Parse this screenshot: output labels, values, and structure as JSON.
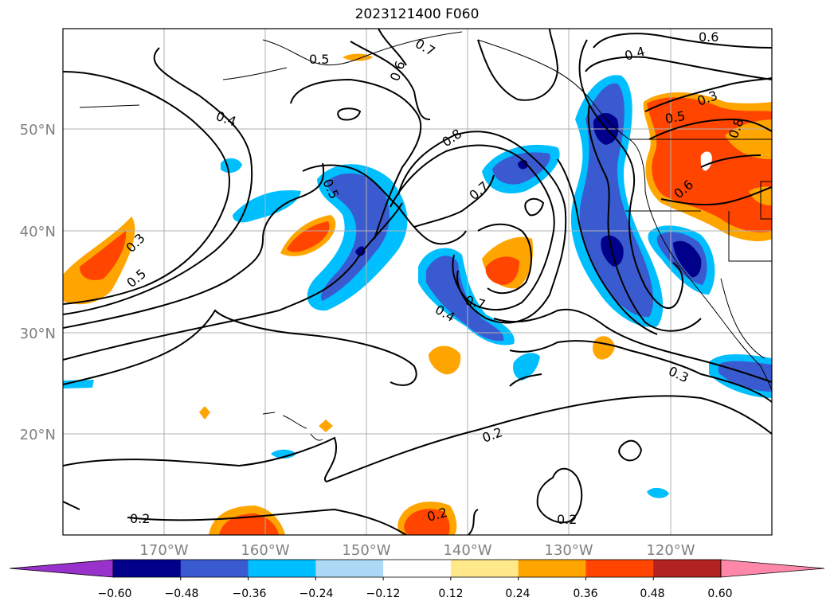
{
  "title": "2023121400 F060",
  "map": {
    "latitude_labels": [
      "50°N",
      "40°N",
      "30°N",
      "20°N"
    ],
    "longitude_labels": [
      "170°W",
      "160°W",
      "150°W",
      "140°W",
      "130°W",
      "120°W"
    ],
    "contour_labels": [
      "0.6",
      "0.7",
      "0.5",
      "0.6",
      "0.4",
      "0.8",
      "0.7",
      "0.5",
      "0.3",
      "0.5",
      "0.7",
      "0.4",
      "0.4",
      "0.3",
      "0.5",
      "0.8",
      "0.6",
      "0.3",
      "0.2",
      "0.2",
      "0.2",
      "0.2"
    ]
  },
  "colorbar": {
    "tick_labels": [
      "−0.60",
      "−0.48",
      "−0.36",
      "−0.24",
      "−0.12",
      "0.12",
      "0.24",
      "0.36",
      "0.48",
      "0.60"
    ],
    "colors": [
      "#9932cc",
      "#00008b",
      "#3a5bd0",
      "#00bfff",
      "#add8f6",
      "#ffffff",
      "#ffe98a",
      "#ffa500",
      "#ff4500",
      "#b22222",
      "#ff88aa"
    ]
  }
}
